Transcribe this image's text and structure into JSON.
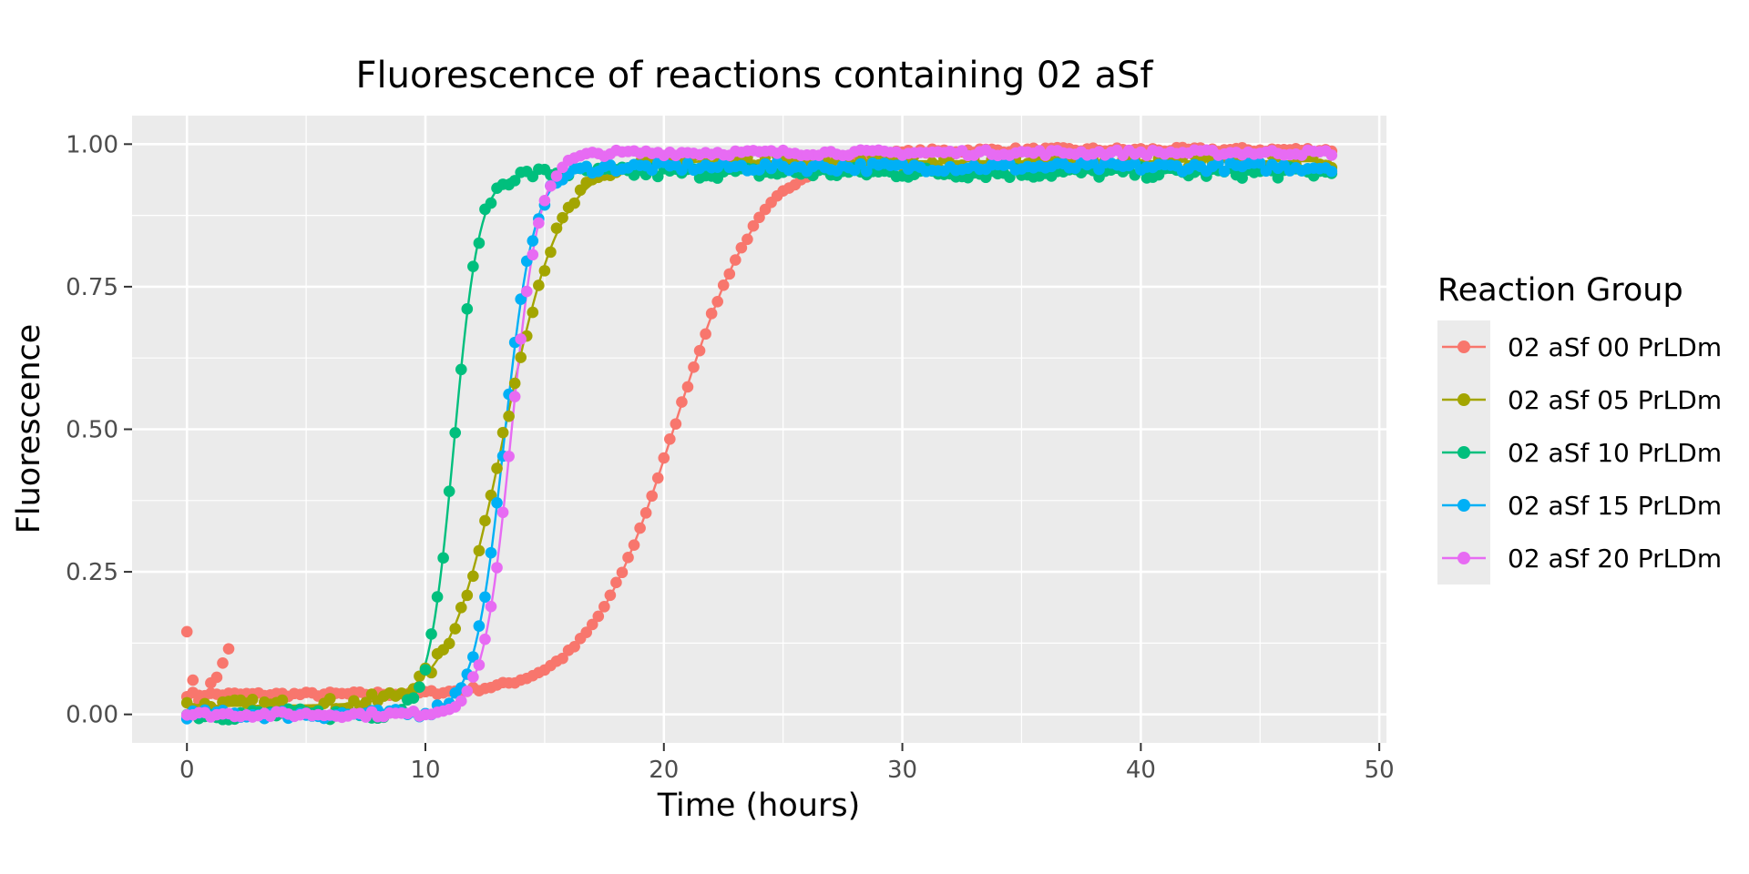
{
  "chart_data": {
    "type": "scatter",
    "title": "Fluorescence of reactions containing 02 aSf",
    "xlabel": "Time (hours)",
    "ylabel": "Fluorescence",
    "xlim": [
      -2.3,
      50.3
    ],
    "ylim": [
      -0.05,
      1.05
    ],
    "x_ticks": [
      0,
      10,
      20,
      30,
      40,
      50
    ],
    "x_tick_labels": [
      "0",
      "10",
      "20",
      "30",
      "40",
      "50"
    ],
    "y_ticks": [
      0,
      0.25,
      0.5,
      0.75,
      1.0
    ],
    "y_tick_labels": [
      "0.00",
      "0.25",
      "0.50",
      "0.75",
      "1.00"
    ],
    "grid": true,
    "legend_position": "right",
    "legend_title": "Reaction Group",
    "x_range": [
      0,
      48
    ],
    "time_step": 0.25,
    "series": [
      {
        "name": "02 aSf 00 PrLDm",
        "color": "#F8766D",
        "baseline": 0.035,
        "plateau": 0.99,
        "t_half": 20.5,
        "rate": 0.55,
        "noise": 0.004
      },
      {
        "name": "02 aSf 05 PrLDm",
        "color": "#A3A500",
        "baseline": 0.015,
        "plateau": 0.97,
        "t_half": 13.3,
        "rate": 0.85,
        "noise": 0.012
      },
      {
        "name": "02 aSf 10 PrLDm",
        "color": "#00BF7D",
        "baseline": 0.0,
        "plateau": 0.95,
        "t_half": 11.2,
        "rate": 1.9,
        "noise": 0.01
      },
      {
        "name": "02 aSf 15 PrLDm",
        "color": "#00B0F6",
        "baseline": 0.0,
        "plateau": 0.96,
        "t_half": 13.3,
        "rate": 1.6,
        "noise": 0.008
      },
      {
        "name": "02 aSf 20 PrLDm",
        "color": "#E76BF3",
        "baseline": 0.0,
        "plateau": 0.985,
        "t_half": 13.6,
        "rate": 1.7,
        "noise": 0.005
      }
    ],
    "early_outliers": {
      "series": "02 aSf 00 PrLDm",
      "x": [
        0.0,
        0.25,
        0.5,
        1.0,
        1.25,
        1.5,
        1.75
      ],
      "y": [
        0.145,
        0.06,
        0.025,
        0.055,
        0.065,
        0.09,
        0.115
      ]
    }
  }
}
